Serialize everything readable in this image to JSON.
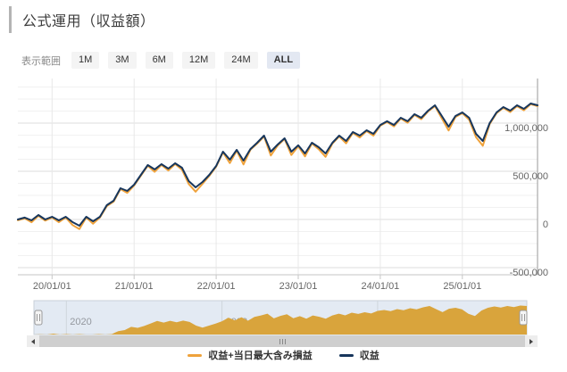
{
  "header": {
    "title": "公式運用（収益額）"
  },
  "range_selector": {
    "label": "表示範囲",
    "buttons": [
      {
        "label": "1M",
        "active": false
      },
      {
        "label": "3M",
        "active": false
      },
      {
        "label": "6M",
        "active": false
      },
      {
        "label": "12M",
        "active": false
      },
      {
        "label": "24M",
        "active": false
      },
      {
        "label": "ALL",
        "active": true
      }
    ],
    "active_bg": "#e3e8f2"
  },
  "chart_data": {
    "type": "line",
    "title": "",
    "xlabel": "",
    "ylabel": "",
    "x_start": "2019-08",
    "x_interval": "month",
    "ylim": [
      -500000,
      1460000
    ],
    "y_minor_step": 125000,
    "grid": true,
    "x_ticks": [
      {
        "label": "20/01/01",
        "month_index": 5
      },
      {
        "label": "21/01/01",
        "month_index": 17
      },
      {
        "label": "22/01/01",
        "month_index": 29
      },
      {
        "label": "23/01/01",
        "month_index": 41
      },
      {
        "label": "24/01/01",
        "month_index": 53
      },
      {
        "label": "25/01/01",
        "month_index": 65
      }
    ],
    "y_ticks": [
      {
        "label": "1,000,000",
        "value": 1000000
      },
      {
        "label": "500,000",
        "value": 500000
      },
      {
        "label": "0",
        "value": 0
      },
      {
        "label": "-500,000",
        "value": -500000
      }
    ],
    "series": [
      {
        "name": "収益+当日最大含み損益",
        "color": "#EFA23B",
        "values": [
          -8000,
          11000,
          -29000,
          38000,
          -12000,
          20000,
          -29000,
          20000,
          -58000,
          -100000,
          20000,
          -44000,
          20000,
          138000,
          184000,
          316000,
          276000,
          353000,
          455000,
          557000,
          494000,
          566000,
          508000,
          575000,
          517000,
          368000,
          288000,
          369000,
          453000,
          548000,
          696000,
          585000,
          714000,
          571000,
          723000,
          788000,
          862000,
          664000,
          768000,
          835000,
          669000,
          759000,
          655000,
          788000,
          730000,
          650000,
          788000,
          862000,
          790000,
          899000,
          850000,
          918000,
          869000,
          973000,
          1011000,
          966000,
          1048000,
          1004000,
          1085000,
          1041000,
          1122000,
          1177000,
          1049000,
          923000,
          1064000,
          1103000,
          1036000,
          854000,
          765000,
          990000,
          1103000,
          1159000,
          1115000,
          1177000,
          1133000,
          1196000,
          1177000
        ]
      },
      {
        "name": "収益",
        "color": "#17365C",
        "values": [
          0,
          19000,
          -9000,
          46000,
          0,
          28000,
          -9000,
          28000,
          -28000,
          -65000,
          28000,
          -19000,
          28000,
          148000,
          194000,
          324000,
          296000,
          361000,
          463000,
          565000,
          519000,
          574000,
          528000,
          583000,
          537000,
          398000,
          333000,
          389000,
          463000,
          556000,
          704000,
          620000,
          722000,
          611000,
          731000,
          796000,
          870000,
          704000,
          778000,
          843000,
          704000,
          769000,
          685000,
          796000,
          750000,
          685000,
          796000,
          870000,
          815000,
          907000,
          870000,
          926000,
          889000,
          981000,
          1019000,
          981000,
          1056000,
          1019000,
          1093000,
          1056000,
          1130000,
          1185000,
          1074000,
          963000,
          1074000,
          1111000,
          1056000,
          889000,
          815000,
          1000000,
          1111000,
          1167000,
          1130000,
          1185000,
          1148000,
          1204000,
          1185000
        ]
      }
    ],
    "legend_position": "bottom-center",
    "navigator": {
      "fill": "#D9A43C",
      "background": "#E3EAF3",
      "border": "#c9d0d9",
      "year_labels": [
        {
          "label": "2020",
          "month_index": 5
        },
        {
          "label": "2022",
          "month_index": 29
        },
        {
          "label": "2024",
          "month_index": 53
        }
      ]
    }
  },
  "legend": {
    "items": [
      {
        "label": "収益+当日最大含み損益",
        "color": "#EFA23B"
      },
      {
        "label": "収益",
        "color": "#17365C"
      }
    ]
  }
}
